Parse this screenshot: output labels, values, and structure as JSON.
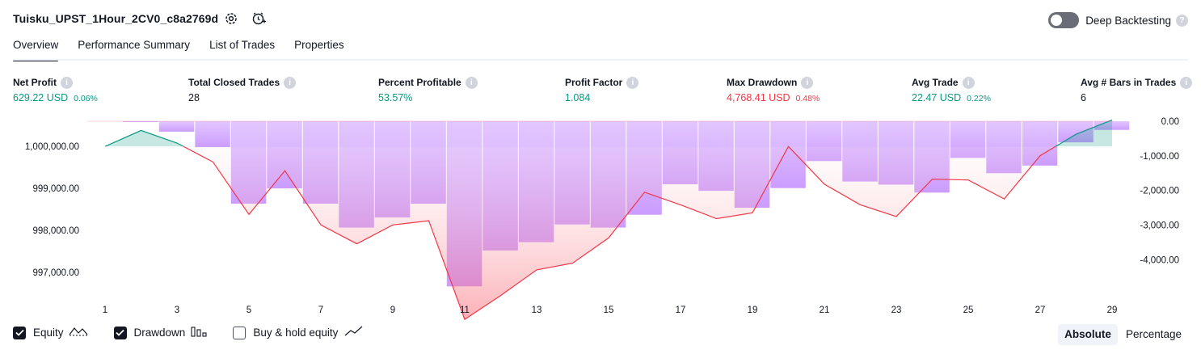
{
  "header": {
    "title": "Tuisku_UPST_1Hour_2CV0_c8a2769d",
    "deep_backtesting_label": "Deep Backtesting"
  },
  "tabs": [
    {
      "label": "Overview"
    },
    {
      "label": "Performance Summary"
    },
    {
      "label": "List of Trades"
    },
    {
      "label": "Properties"
    }
  ],
  "metrics": [
    {
      "label": "Net Profit",
      "value": "629.22 USD",
      "sub": "0.06%",
      "color": "#089981"
    },
    {
      "label": "Total Closed Trades",
      "value": "28",
      "sub": "",
      "color": "#131722"
    },
    {
      "label": "Percent Profitable",
      "value": "53.57%",
      "sub": "",
      "color": "#089981"
    },
    {
      "label": "Profit Factor",
      "value": "1.084",
      "sub": "",
      "color": "#089981"
    },
    {
      "label": "Max Drawdown",
      "value": "4,768.41 USD",
      "sub": "0.48%",
      "color": "#f23645"
    },
    {
      "label": "Avg Trade",
      "value": "22.47 USD",
      "sub": "0.22%",
      "color": "#089981"
    },
    {
      "label": "Avg # Bars in Trades",
      "value": "6",
      "sub": "",
      "color": "#131722"
    }
  ],
  "legend": {
    "equity": "Equity",
    "drawdown": "Drawdown",
    "buy_hold": "Buy & hold equity"
  },
  "toggle": {
    "absolute": "Absolute",
    "percentage": "Percentage"
  },
  "colors": {
    "equity_up": "#089981",
    "equity_down": "#f23645",
    "drawdown_bar": "#cc99ff",
    "text": "#131722"
  },
  "chart_data": {
    "type": "line+bar",
    "x_ticks": [
      "1",
      "3",
      "5",
      "7",
      "9",
      "11",
      "13",
      "15",
      "17",
      "19",
      "21",
      "23",
      "25",
      "27",
      "29"
    ],
    "left_axis": {
      "ticks": [
        "1,000,000.00",
        "999,000.00",
        "998,000.00",
        "997,000.00"
      ],
      "range": [
        996500,
        1000600
      ]
    },
    "right_axis": {
      "ticks": [
        "0.00",
        "-1,000.00",
        "-2,000.00",
        "-3,000.00",
        "-4,000.00"
      ],
      "range": [
        -4900,
        0
      ]
    },
    "equity": {
      "name": "Equity",
      "x": [
        1,
        2,
        3,
        4,
        5,
        6,
        7,
        8,
        9,
        10,
        11,
        12,
        13,
        14,
        15,
        16,
        17,
        18,
        19,
        20,
        21,
        22,
        23,
        24,
        25,
        26,
        27,
        28,
        29
      ],
      "values": [
        1000000,
        1000380,
        1000080,
        999630,
        998380,
        999420,
        998130,
        997680,
        998130,
        998230,
        995880,
        996450,
        997060,
        997220,
        997820,
        998910,
        998610,
        998280,
        998420,
        1000000,
        999100,
        998610,
        998330,
        999220,
        999200,
        998750,
        999780,
        1000290,
        1000630
      ]
    },
    "drawdown": {
      "name": "Drawdown",
      "x": [
        2,
        3,
        4,
        5,
        6,
        7,
        8,
        9,
        10,
        11,
        12,
        13,
        14,
        15,
        16,
        17,
        18,
        19,
        20,
        21,
        22,
        23,
        24,
        25,
        26,
        27,
        28,
        29
      ],
      "values": [
        0,
        -300,
        -750,
        -2380,
        -1940,
        -2380,
        -3070,
        -2780,
        -2380,
        -4768,
        -3730,
        -3490,
        -2980,
        -3070,
        -2700,
        -1820,
        -2010,
        -2500,
        -1930,
        -1150,
        -1740,
        -1830,
        -2060,
        -1060,
        -1500,
        -1280,
        -610,
        -250
      ]
    },
    "title": "",
    "xlabel": "",
    "ylabel": ""
  }
}
